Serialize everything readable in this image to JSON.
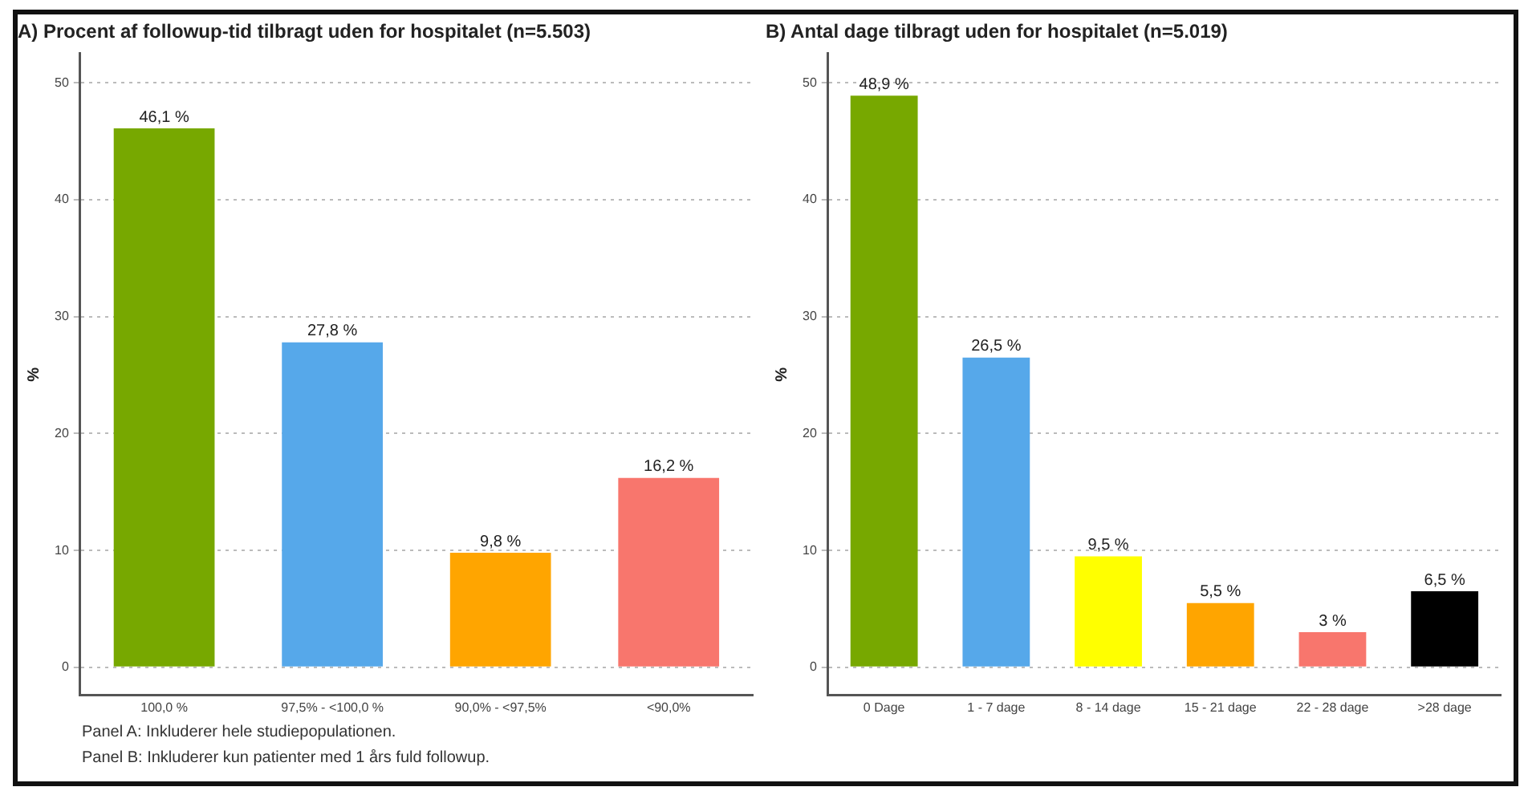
{
  "chart_data": [
    {
      "type": "bar",
      "title": "A) Procent af followup-tid tilbragt uden for hospitalet (n=5.503)",
      "ylabel": "%",
      "categories": [
        "100,0 %",
        "97,5% - <100,0 %",
        "90,0% - <97,5%",
        "<90,0%"
      ],
      "values": [
        46.1,
        27.8,
        9.8,
        16.2
      ],
      "colors": [
        "#77a800",
        "#56a8ea",
        "#ffa500",
        "#f8766d"
      ],
      "value_labels": [
        "46,1 %",
        "27,8 %",
        "9,8 %",
        "16,2 %"
      ],
      "ylim": [
        -2.4,
        52.5
      ],
      "yticks": [
        0,
        10,
        20,
        30,
        40,
        50
      ],
      "grid": "y",
      "annotations": [
        "Panel A: Inkluderer hele studiepopulationen.",
        "Panel B: Inkluderer kun patienter med 1 års fuld followup."
      ]
    },
    {
      "type": "bar",
      "title": "B) Antal dage tilbragt uden for hospitalet (n=5.019)",
      "ylabel": "%",
      "categories": [
        "0 Dage",
        "1 - 7 dage",
        "8 - 14 dage",
        "15 - 21 dage",
        "22 - 28 dage",
        ">28 dage"
      ],
      "values": [
        48.9,
        26.5,
        9.5,
        5.5,
        3,
        6.5
      ],
      "colors": [
        "#77a800",
        "#56a8ea",
        "#ffff00",
        "#ffa500",
        "#f8766d",
        "#000000"
      ],
      "value_labels": [
        "48,9 %",
        "26,5 %",
        "9,5 %",
        "5,5 %",
        "3 %",
        "6,5 %"
      ],
      "ylim": [
        -2.4,
        52.5
      ],
      "yticks": [
        0,
        10,
        20,
        30,
        40,
        50
      ],
      "grid": "y"
    }
  ]
}
